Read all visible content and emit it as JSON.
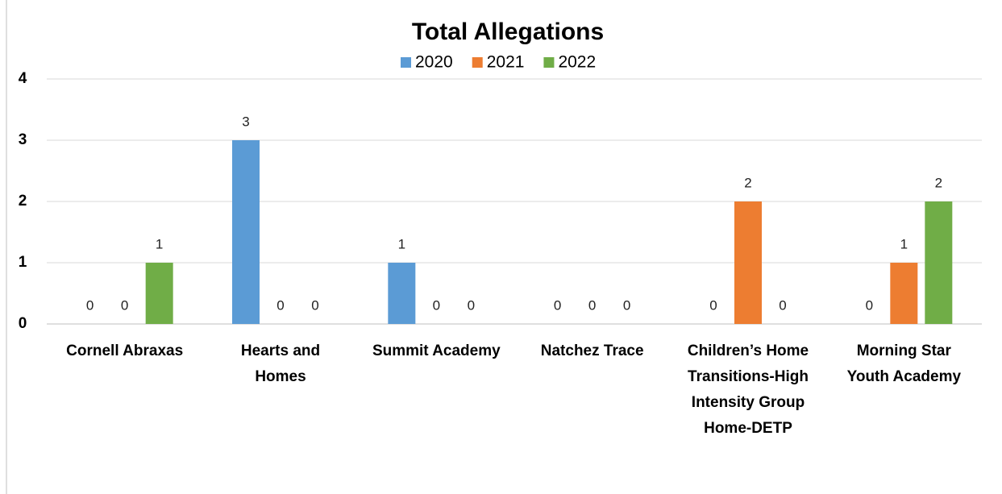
{
  "chart_data": {
    "type": "bar",
    "title": "Total Allegations",
    "categories": [
      "Cornell Abraxas",
      "Hearts and Homes",
      "Summit Academy",
      "Natchez Trace",
      "Children’s Home Transitions-High Intensity Group Home-DETP",
      "Morning Star Youth Academy"
    ],
    "series": [
      {
        "name": "2020",
        "color": "#5b9bd5",
        "values": [
          0,
          3,
          1,
          0,
          0,
          0
        ]
      },
      {
        "name": "2021",
        "color": "#ed7d31",
        "values": [
          0,
          0,
          0,
          0,
          2,
          1
        ]
      },
      {
        "name": "2022",
        "color": "#70ad47",
        "values": [
          1,
          0,
          0,
          0,
          0,
          2
        ]
      }
    ],
    "ylim": [
      0,
      4
    ],
    "yticks": [
      0,
      1,
      2,
      3,
      4
    ],
    "grid": true,
    "legend": "top"
  }
}
